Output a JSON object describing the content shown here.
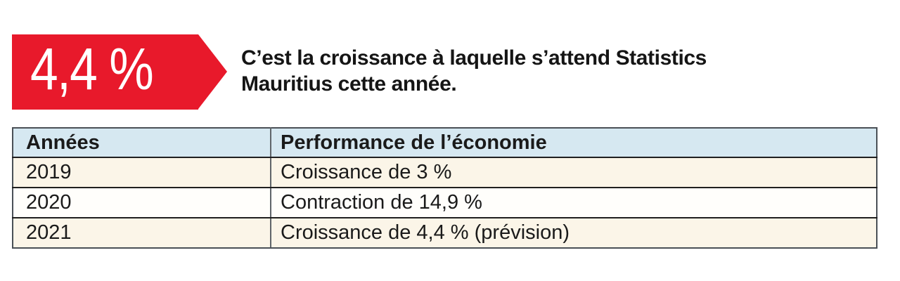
{
  "badge": {
    "value": "4,4 %",
    "bg_color": "#e8192b",
    "text_color": "#ffffff"
  },
  "headline": {
    "text": "C’est la croissance à laquelle s’attend Statistics Mauritius cette année.",
    "lines": [
      "C’est la croissance à laquelle s’attend Statistics",
      "Mauritius cette année."
    ]
  },
  "table": {
    "header": {
      "col1": "Années",
      "col2": "Performance de l’économie"
    },
    "rows": [
      {
        "year": "2019",
        "performance": "Croissance de 3 %"
      },
      {
        "year": "2020",
        "performance": "Contraction de 14,9 %"
      },
      {
        "year": "2021",
        "performance": "Croissance de 4,4 % (prévision)"
      }
    ],
    "colors": {
      "header_bg": "#d6e8f1",
      "row_odd_bg": "#fbf5e8",
      "row_even_bg": "#fffefb",
      "border_outer": "#4a5056",
      "border_inner": "#1f1f1f"
    }
  },
  "chart_data": {
    "type": "table",
    "title": "Performance de l’économie",
    "columns": [
      "Années",
      "Performance de l’économie"
    ],
    "rows": [
      [
        "2019",
        "Croissance de 3 %"
      ],
      [
        "2020",
        "Contraction de 14,9 %"
      ],
      [
        "2021",
        "Croissance de 4,4 % (prévision)"
      ]
    ],
    "numeric": {
      "years": [
        2019,
        2020,
        2021
      ],
      "growth_percent": [
        3,
        -14.9,
        4.4
      ],
      "notes": [
        "",
        "",
        "prévision"
      ]
    },
    "callout": {
      "value_percent": 4.4,
      "label": "4,4 %",
      "description": "C’est la croissance à laquelle s’attend Statistics Mauritius cette année."
    }
  }
}
